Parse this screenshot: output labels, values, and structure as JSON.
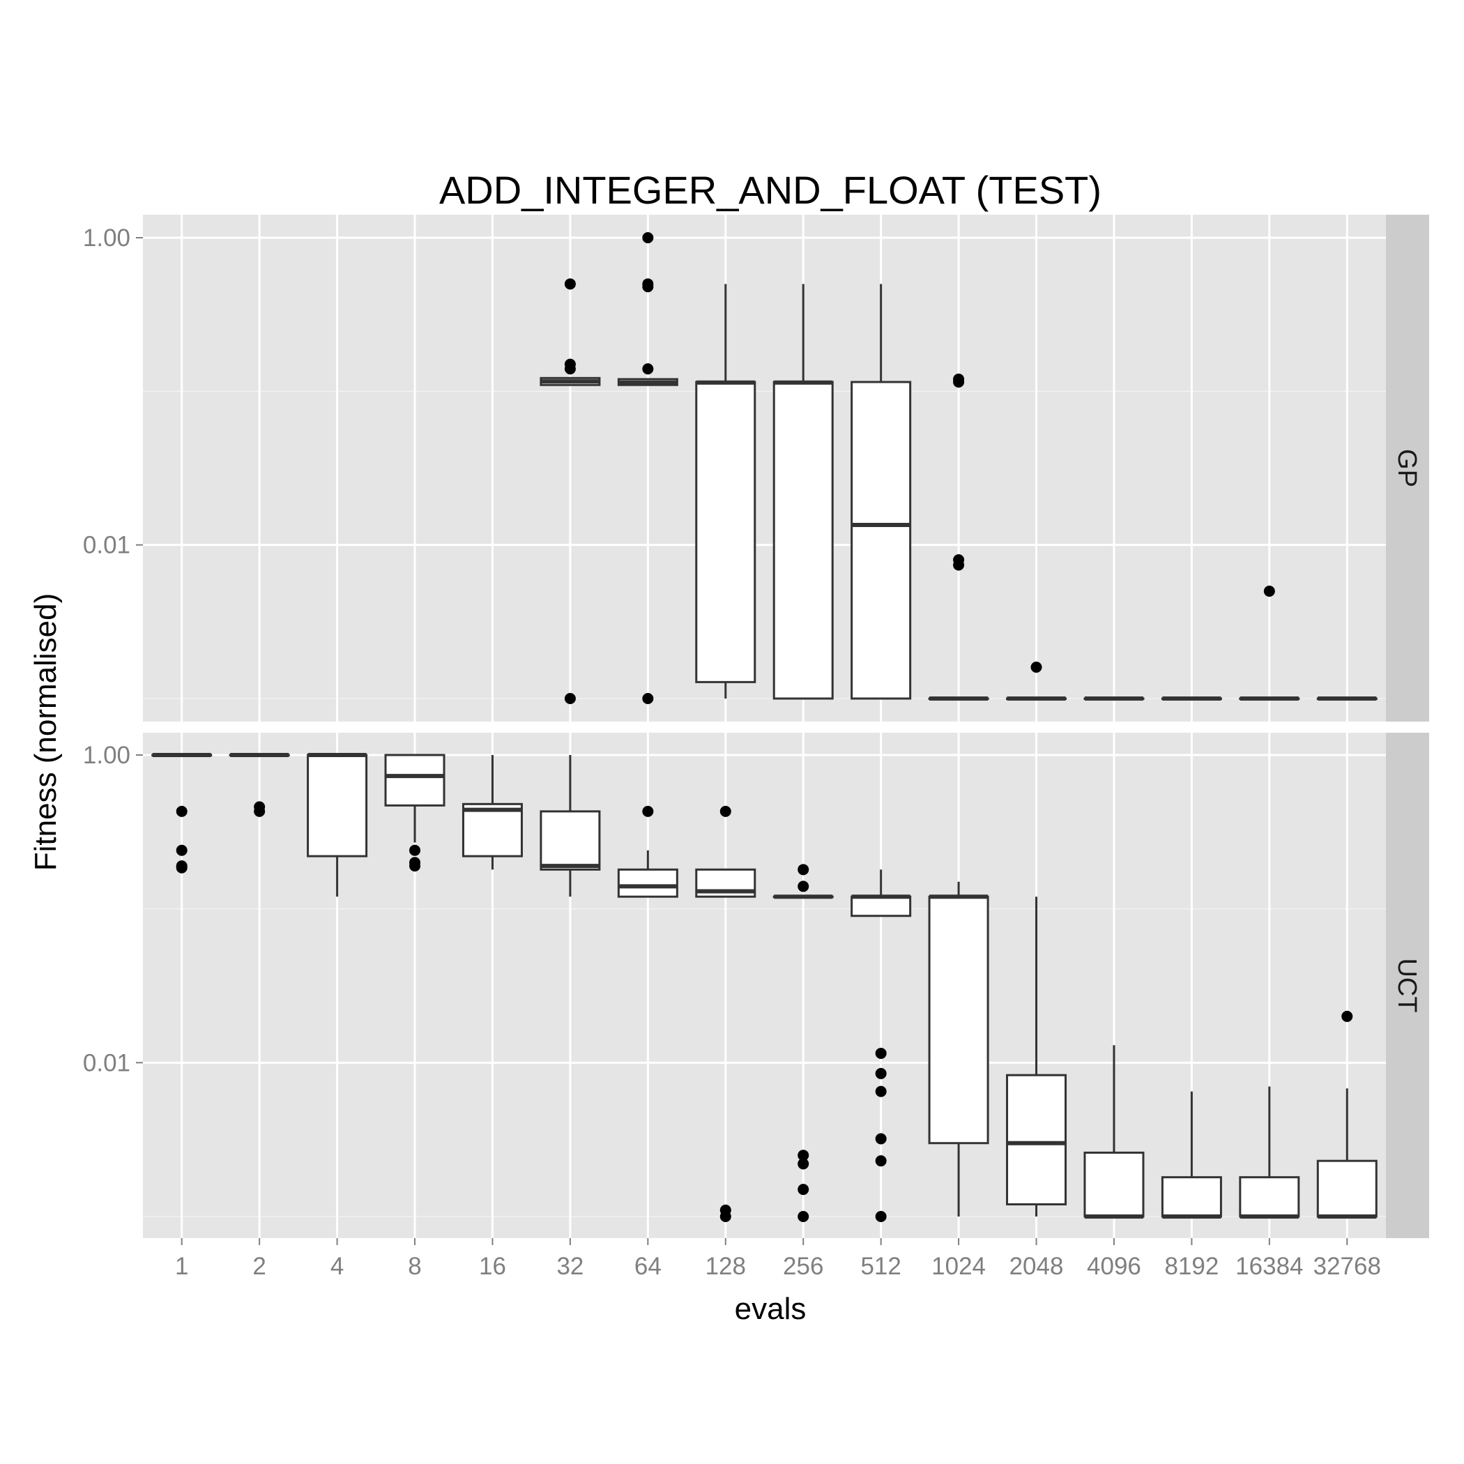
{
  "chart_data": {
    "type": "boxplot",
    "title": "ADD_INTEGER_AND_FLOAT (TEST)",
    "xlabel": "evals",
    "ylabel": "Fitness (normalised)",
    "y_scale": "log10",
    "y_tick_labels": [
      "1.00",
      "0.01"
    ],
    "categories": [
      "1",
      "2",
      "4",
      "8",
      "16",
      "32",
      "64",
      "128",
      "256",
      "512",
      "1024",
      "2048",
      "4096",
      "8192",
      "16384",
      "32768"
    ],
    "grid": true,
    "facets": [
      {
        "name": "GP",
        "ylim": [
          0.001,
          1.0
        ],
        "boxes": [
          null,
          null,
          null,
          null,
          null,
          {
            "whisker_low": 0.11,
            "q1": 0.11,
            "median": 0.116,
            "q3": 0.122,
            "whisker_high": 0.122,
            "outliers": [
              0.5,
              0.15,
              0.14,
              0.001
            ]
          },
          {
            "whisker_low": 0.11,
            "q1": 0.11,
            "median": 0.114,
            "q3": 0.12,
            "whisker_high": 0.12,
            "outliers": [
              1.0,
              0.5,
              0.48,
              0.14,
              0.001
            ]
          },
          {
            "whisker_low": 0.001,
            "q1": 0.00128,
            "median": 0.114,
            "q3": 0.115,
            "whisker_high": 0.5,
            "outliers": []
          },
          {
            "whisker_low": 0.001,
            "q1": 0.001,
            "median": 0.114,
            "q3": 0.115,
            "whisker_high": 0.5,
            "outliers": []
          },
          {
            "whisker_low": 0.001,
            "q1": 0.001,
            "median": 0.0135,
            "q3": 0.115,
            "whisker_high": 0.5,
            "outliers": []
          },
          {
            "whisker_low": 0.001,
            "q1": 0.001,
            "median": 0.001,
            "q3": 0.001,
            "whisker_high": 0.001,
            "outliers": [
              0.12,
              0.115,
              0.008,
              0.0074
            ]
          },
          {
            "whisker_low": 0.001,
            "q1": 0.001,
            "median": 0.001,
            "q3": 0.001,
            "whisker_high": 0.001,
            "outliers": [
              0.0016
            ]
          },
          {
            "whisker_low": 0.001,
            "q1": 0.001,
            "median": 0.001,
            "q3": 0.001,
            "whisker_high": 0.001,
            "outliers": []
          },
          {
            "whisker_low": 0.001,
            "q1": 0.001,
            "median": 0.001,
            "q3": 0.001,
            "whisker_high": 0.001,
            "outliers": []
          },
          {
            "whisker_low": 0.001,
            "q1": 0.001,
            "median": 0.001,
            "q3": 0.001,
            "whisker_high": 0.001,
            "outliers": [
              0.005
            ]
          },
          {
            "whisker_low": 0.001,
            "q1": 0.001,
            "median": 0.001,
            "q3": 0.001,
            "whisker_high": 0.001,
            "outliers": []
          }
        ]
      },
      {
        "name": "UCT",
        "ylim": [
          0.001,
          1.0
        ],
        "boxes": [
          {
            "whisker_low": 1.0,
            "q1": 1.0,
            "median": 1.0,
            "q3": 1.0,
            "whisker_high": 1.0,
            "outliers": [
              0.43,
              0.24,
              0.19,
              0.185
            ]
          },
          {
            "whisker_low": 1.0,
            "q1": 1.0,
            "median": 1.0,
            "q3": 1.0,
            "whisker_high": 1.0,
            "outliers": [
              0.46,
              0.43
            ]
          },
          {
            "whisker_low": 0.12,
            "q1": 0.22,
            "median": 1.0,
            "q3": 1.0,
            "whisker_high": 1.0,
            "outliers": []
          },
          {
            "whisker_low": 0.27,
            "q1": 0.47,
            "median": 0.73,
            "q3": 1.0,
            "whisker_high": 1.0,
            "outliers": [
              0.24,
              0.2,
              0.19
            ]
          },
          {
            "whisker_low": 0.18,
            "q1": 0.22,
            "median": 0.44,
            "q3": 0.48,
            "whisker_high": 1.0,
            "outliers": []
          },
          {
            "whisker_low": 0.12,
            "q1": 0.18,
            "median": 0.19,
            "q3": 0.43,
            "whisker_high": 1.0,
            "outliers": []
          },
          {
            "whisker_low": 0.12,
            "q1": 0.12,
            "median": 0.14,
            "q3": 0.18,
            "whisker_high": 0.24,
            "outliers": [
              0.43
            ]
          },
          {
            "whisker_low": 0.12,
            "q1": 0.12,
            "median": 0.13,
            "q3": 0.18,
            "whisker_high": 0.18,
            "outliers": [
              0.43,
              0.0011,
              0.001
            ]
          },
          {
            "whisker_low": 0.12,
            "q1": 0.12,
            "median": 0.12,
            "q3": 0.12,
            "whisker_high": 0.12,
            "outliers": [
              0.18,
              0.14,
              0.0025,
              0.0022,
              0.0015,
              0.001
            ]
          },
          {
            "whisker_low": 0.09,
            "q1": 0.09,
            "median": 0.12,
            "q3": 0.12,
            "whisker_high": 0.18,
            "outliers": [
              0.0115,
              0.0085,
              0.0065,
              0.0032,
              0.0023,
              0.001
            ]
          },
          {
            "whisker_low": 0.001,
            "q1": 0.003,
            "median": 0.12,
            "q3": 0.12,
            "whisker_high": 0.15,
            "outliers": []
          },
          {
            "whisker_low": 0.001,
            "q1": 0.0012,
            "median": 0.003,
            "q3": 0.0083,
            "whisker_high": 0.12,
            "outliers": []
          },
          {
            "whisker_low": 0.001,
            "q1": 0.001,
            "median": 0.001,
            "q3": 0.0026,
            "whisker_high": 0.013,
            "outliers": []
          },
          {
            "whisker_low": 0.001,
            "q1": 0.001,
            "median": 0.001,
            "q3": 0.0018,
            "whisker_high": 0.0065,
            "outliers": []
          },
          {
            "whisker_low": 0.001,
            "q1": 0.001,
            "median": 0.001,
            "q3": 0.0018,
            "whisker_high": 0.007,
            "outliers": []
          },
          {
            "whisker_low": 0.001,
            "q1": 0.001,
            "median": 0.001,
            "q3": 0.0023,
            "whisker_high": 0.0068,
            "outliers": [
              0.02
            ]
          }
        ]
      }
    ]
  }
}
